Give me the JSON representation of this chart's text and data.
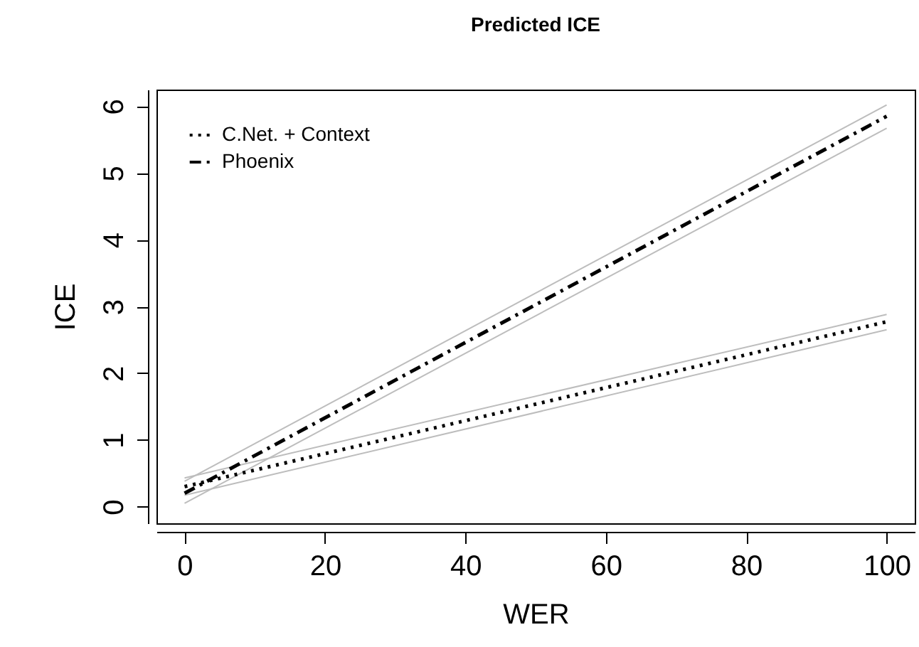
{
  "chart_data": {
    "type": "line",
    "title": "Predicted ICE",
    "xlabel": "WER",
    "ylabel": "ICE",
    "x": [
      0,
      100
    ],
    "xlim": [
      -4,
      104
    ],
    "ylim": [
      -0.25,
      6.25
    ],
    "xticks": [
      0,
      20,
      40,
      60,
      80,
      100
    ],
    "yticks": [
      0,
      1,
      2,
      3,
      4,
      5,
      6
    ],
    "grid": false,
    "legend": "top left",
    "marker": "none",
    "series": [
      {
        "color": "#bdbdbd",
        "line_style": "solid",
        "values": [
          0.17,
          2.65
        ]
      },
      {
        "color": "#bdbdbd",
        "line_style": "solid",
        "values": [
          0.43,
          2.88
        ]
      },
      {
        "color": "#bdbdbd",
        "line_style": "solid",
        "values": [
          0.05,
          5.67
        ]
      },
      {
        "color": "#bdbdbd",
        "line_style": "solid",
        "values": [
          0.38,
          6.02
        ]
      },
      {
        "name": "C.Net. + Context",
        "color": "#000000",
        "line_style": "dotted",
        "values": [
          0.3,
          2.77
        ]
      },
      {
        "name": "Phoenix",
        "color": "#000000",
        "line_style": "dashed",
        "values": [
          0.2,
          5.85
        ]
      }
    ]
  }
}
